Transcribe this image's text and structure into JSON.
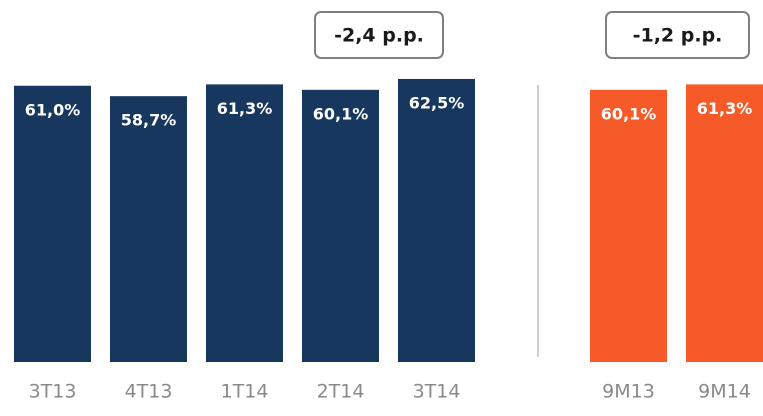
{
  "chart_data": {
    "type": "bar",
    "categories": [
      "3T13",
      "4T13",
      "1T14",
      "2T14",
      "3T14",
      "9M13",
      "9M14"
    ],
    "values": [
      61.0,
      58.7,
      61.3,
      60.1,
      62.5,
      60.1,
      61.3
    ],
    "value_labels": [
      "61,0%",
      "58,7%",
      "61,3%",
      "60,1%",
      "62,5%",
      "60,1%",
      "61,3%"
    ],
    "colors": [
      "#17375e",
      "#17375e",
      "#17375e",
      "#17375e",
      "#17375e",
      "#f55a28",
      "#f55a28"
    ],
    "ylim": [
      0,
      70
    ],
    "annotations": [
      "-2,4 p.p.",
      "-1,2 p.p."
    ]
  }
}
